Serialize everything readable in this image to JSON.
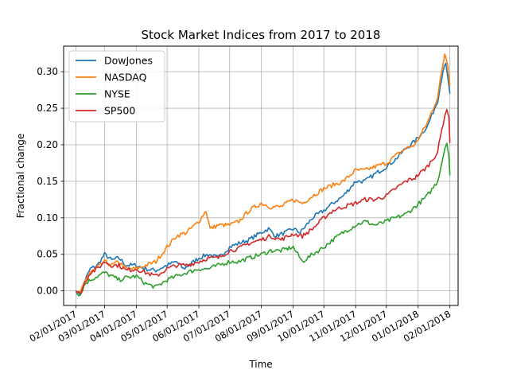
{
  "chart_data": {
    "type": "line",
    "title": "Stock Market Indices from 2017 to 2018",
    "xlabel": "Time",
    "ylabel": "Fractional change",
    "x_ticks": [
      "02/01/2017",
      "03/01/2017",
      "04/01/2017",
      "05/01/2017",
      "06/01/2017",
      "07/01/2017",
      "08/01/2017",
      "09/01/2017",
      "10/01/2017",
      "11/01/2017",
      "12/01/2017",
      "01/01/2018",
      "02/01/2018"
    ],
    "y_ticks": [
      "0.00",
      "0.05",
      "0.10",
      "0.15",
      "0.20",
      "0.25",
      "0.30"
    ],
    "xlim": [
      "2017-01-20",
      "2018-02-09"
    ],
    "ylim": [
      -0.02,
      0.335
    ],
    "grid": true,
    "legend_position": "upper left",
    "series": [
      {
        "name": "DowJones",
        "color": "#1f77b4",
        "points": [
          [
            "2017-02-01",
            0.0
          ],
          [
            "2017-02-05",
            -0.005
          ],
          [
            "2017-02-10",
            0.015
          ],
          [
            "2017-02-15",
            0.03
          ],
          [
            "2017-02-22",
            0.035
          ],
          [
            "2017-03-01",
            0.05
          ],
          [
            "2017-03-08",
            0.042
          ],
          [
            "2017-03-15",
            0.045
          ],
          [
            "2017-03-22",
            0.035
          ],
          [
            "2017-04-01",
            0.035
          ],
          [
            "2017-04-10",
            0.03
          ],
          [
            "2017-04-20",
            0.028
          ],
          [
            "2017-05-01",
            0.035
          ],
          [
            "2017-05-10",
            0.04
          ],
          [
            "2017-05-17",
            0.03
          ],
          [
            "2017-06-01",
            0.045
          ],
          [
            "2017-06-10",
            0.05
          ],
          [
            "2017-06-20",
            0.045
          ],
          [
            "2017-07-01",
            0.06
          ],
          [
            "2017-07-10",
            0.065
          ],
          [
            "2017-07-20",
            0.07
          ],
          [
            "2017-08-01",
            0.08
          ],
          [
            "2017-08-08",
            0.085
          ],
          [
            "2017-08-15",
            0.075
          ],
          [
            "2017-08-25",
            0.08
          ],
          [
            "2017-09-01",
            0.085
          ],
          [
            "2017-09-08",
            0.08
          ],
          [
            "2017-09-20",
            0.1
          ],
          [
            "2017-10-01",
            0.11
          ],
          [
            "2017-10-10",
            0.12
          ],
          [
            "2017-10-20",
            0.13
          ],
          [
            "2017-11-01",
            0.15
          ],
          [
            "2017-11-10",
            0.15
          ],
          [
            "2017-11-20",
            0.16
          ],
          [
            "2017-12-01",
            0.17
          ],
          [
            "2017-12-10",
            0.18
          ],
          [
            "2017-12-20",
            0.195
          ],
          [
            "2017-12-29",
            0.205
          ],
          [
            "2018-01-10",
            0.225
          ],
          [
            "2018-01-20",
            0.26
          ],
          [
            "2018-01-25",
            0.3
          ],
          [
            "2018-01-28",
            0.31
          ],
          [
            "2018-01-30",
            0.29
          ],
          [
            "2018-02-01",
            0.27
          ]
        ]
      },
      {
        "name": "NASDAQ",
        "color": "#ff7f0e",
        "points": [
          [
            "2017-02-01",
            0.0
          ],
          [
            "2017-02-05",
            -0.004
          ],
          [
            "2017-02-10",
            0.015
          ],
          [
            "2017-02-15",
            0.025
          ],
          [
            "2017-02-22",
            0.032
          ],
          [
            "2017-03-01",
            0.04
          ],
          [
            "2017-03-08",
            0.035
          ],
          [
            "2017-03-15",
            0.04
          ],
          [
            "2017-03-22",
            0.03
          ],
          [
            "2017-04-01",
            0.03
          ],
          [
            "2017-04-10",
            0.035
          ],
          [
            "2017-04-20",
            0.04
          ],
          [
            "2017-05-01",
            0.06
          ],
          [
            "2017-05-10",
            0.075
          ],
          [
            "2017-05-20",
            0.08
          ],
          [
            "2017-06-01",
            0.095
          ],
          [
            "2017-06-08",
            0.11
          ],
          [
            "2017-06-12",
            0.085
          ],
          [
            "2017-06-20",
            0.09
          ],
          [
            "2017-07-01",
            0.09
          ],
          [
            "2017-07-10",
            0.095
          ],
          [
            "2017-07-20",
            0.11
          ],
          [
            "2017-08-01",
            0.12
          ],
          [
            "2017-08-10",
            0.115
          ],
          [
            "2017-08-20",
            0.115
          ],
          [
            "2017-09-01",
            0.125
          ],
          [
            "2017-09-10",
            0.12
          ],
          [
            "2017-09-20",
            0.13
          ],
          [
            "2017-10-01",
            0.14
          ],
          [
            "2017-10-10",
            0.145
          ],
          [
            "2017-10-20",
            0.15
          ],
          [
            "2017-11-01",
            0.165
          ],
          [
            "2017-11-10",
            0.165
          ],
          [
            "2017-11-20",
            0.17
          ],
          [
            "2017-12-01",
            0.175
          ],
          [
            "2017-12-10",
            0.185
          ],
          [
            "2017-12-20",
            0.195
          ],
          [
            "2017-12-29",
            0.2
          ],
          [
            "2018-01-10",
            0.23
          ],
          [
            "2018-01-20",
            0.265
          ],
          [
            "2018-01-24",
            0.3
          ],
          [
            "2018-01-27",
            0.325
          ],
          [
            "2018-01-30",
            0.31
          ],
          [
            "2018-02-01",
            0.28
          ]
        ]
      },
      {
        "name": "NYSE",
        "color": "#2ca02c",
        "points": [
          [
            "2017-02-01",
            0.0
          ],
          [
            "2017-02-05",
            -0.006
          ],
          [
            "2017-02-10",
            0.01
          ],
          [
            "2017-02-15",
            0.015
          ],
          [
            "2017-02-22",
            0.02
          ],
          [
            "2017-03-01",
            0.025
          ],
          [
            "2017-03-08",
            0.02
          ],
          [
            "2017-03-15",
            0.015
          ],
          [
            "2017-03-22",
            0.018
          ],
          [
            "2017-04-01",
            0.02
          ],
          [
            "2017-04-10",
            0.01
          ],
          [
            "2017-04-20",
            0.005
          ],
          [
            "2017-05-01",
            0.015
          ],
          [
            "2017-05-10",
            0.02
          ],
          [
            "2017-05-20",
            0.025
          ],
          [
            "2017-06-01",
            0.03
          ],
          [
            "2017-06-10",
            0.03
          ],
          [
            "2017-06-20",
            0.035
          ],
          [
            "2017-07-01",
            0.04
          ],
          [
            "2017-07-10",
            0.04
          ],
          [
            "2017-07-20",
            0.045
          ],
          [
            "2017-08-01",
            0.05
          ],
          [
            "2017-08-10",
            0.055
          ],
          [
            "2017-08-20",
            0.055
          ],
          [
            "2017-09-01",
            0.06
          ],
          [
            "2017-09-10",
            0.04
          ],
          [
            "2017-09-20",
            0.05
          ],
          [
            "2017-10-01",
            0.06
          ],
          [
            "2017-10-10",
            0.07
          ],
          [
            "2017-10-20",
            0.08
          ],
          [
            "2017-11-01",
            0.09
          ],
          [
            "2017-11-10",
            0.095
          ],
          [
            "2017-11-20",
            0.09
          ],
          [
            "2017-12-01",
            0.095
          ],
          [
            "2017-12-10",
            0.1
          ],
          [
            "2017-12-20",
            0.105
          ],
          [
            "2017-12-29",
            0.115
          ],
          [
            "2018-01-10",
            0.13
          ],
          [
            "2018-01-20",
            0.15
          ],
          [
            "2018-01-24",
            0.175
          ],
          [
            "2018-01-27",
            0.195
          ],
          [
            "2018-01-29",
            0.205
          ],
          [
            "2018-01-31",
            0.185
          ],
          [
            "2018-02-01",
            0.158
          ]
        ]
      },
      {
        "name": "SP500",
        "color": "#d62728",
        "points": [
          [
            "2017-02-01",
            0.0
          ],
          [
            "2017-02-05",
            -0.005
          ],
          [
            "2017-02-10",
            0.012
          ],
          [
            "2017-02-15",
            0.025
          ],
          [
            "2017-02-22",
            0.03
          ],
          [
            "2017-03-01",
            0.04
          ],
          [
            "2017-03-08",
            0.035
          ],
          [
            "2017-03-15",
            0.035
          ],
          [
            "2017-03-22",
            0.028
          ],
          [
            "2017-04-01",
            0.03
          ],
          [
            "2017-04-10",
            0.025
          ],
          [
            "2017-04-20",
            0.02
          ],
          [
            "2017-05-01",
            0.03
          ],
          [
            "2017-05-10",
            0.035
          ],
          [
            "2017-05-20",
            0.035
          ],
          [
            "2017-06-01",
            0.04
          ],
          [
            "2017-06-10",
            0.045
          ],
          [
            "2017-06-20",
            0.045
          ],
          [
            "2017-07-01",
            0.055
          ],
          [
            "2017-07-10",
            0.058
          ],
          [
            "2017-07-20",
            0.065
          ],
          [
            "2017-08-01",
            0.07
          ],
          [
            "2017-08-10",
            0.075
          ],
          [
            "2017-08-20",
            0.07
          ],
          [
            "2017-09-01",
            0.078
          ],
          [
            "2017-09-10",
            0.075
          ],
          [
            "2017-09-20",
            0.085
          ],
          [
            "2017-10-01",
            0.1
          ],
          [
            "2017-10-10",
            0.11
          ],
          [
            "2017-10-20",
            0.115
          ],
          [
            "2017-11-01",
            0.12
          ],
          [
            "2017-11-10",
            0.125
          ],
          [
            "2017-11-20",
            0.125
          ],
          [
            "2017-12-01",
            0.13
          ],
          [
            "2017-12-10",
            0.14
          ],
          [
            "2017-12-20",
            0.15
          ],
          [
            "2017-12-29",
            0.155
          ],
          [
            "2018-01-10",
            0.17
          ],
          [
            "2018-01-20",
            0.19
          ],
          [
            "2018-01-24",
            0.22
          ],
          [
            "2018-01-27",
            0.24
          ],
          [
            "2018-01-29",
            0.25
          ],
          [
            "2018-01-31",
            0.235
          ],
          [
            "2018-02-01",
            0.202
          ]
        ]
      }
    ]
  }
}
